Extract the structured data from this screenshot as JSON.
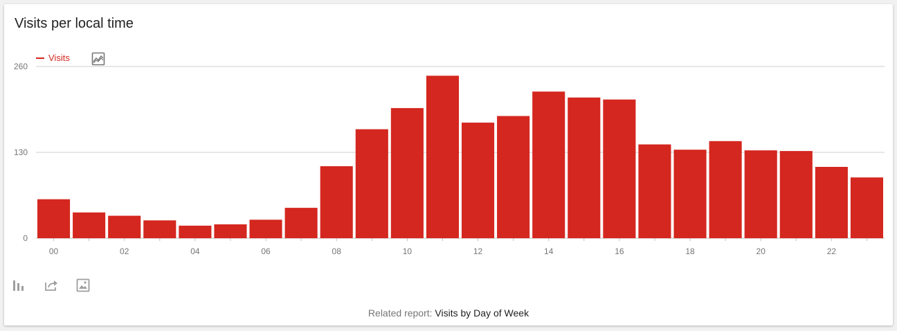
{
  "card": {
    "title": "Visits per local time",
    "related_prefix": "Related report:",
    "related_link": "Visits by Day of Week"
  },
  "icons": {
    "chart_toggle": "line-chart-icon",
    "footer": [
      "bar-chart-icon",
      "share-icon",
      "image-icon"
    ]
  },
  "colors": {
    "bar": "#d4271f",
    "grid": "#cfcfcf",
    "axis_text": "#757575"
  },
  "chart_data": {
    "type": "bar",
    "title": "Visits per local time",
    "xlabel": "",
    "ylabel": "",
    "grid": true,
    "legend": "top-left",
    "ylim": [
      0,
      260
    ],
    "yticks": [
      "0",
      "130",
      "260"
    ],
    "categories": [
      "00",
      "01",
      "02",
      "03",
      "04",
      "05",
      "06",
      "07",
      "08",
      "09",
      "10",
      "11",
      "12",
      "13",
      "14",
      "15",
      "16",
      "17",
      "18",
      "19",
      "20",
      "21",
      "22",
      "23"
    ],
    "xtick_labels": [
      "00",
      "",
      "02",
      "",
      "04",
      "",
      "06",
      "",
      "08",
      "",
      "10",
      "",
      "12",
      "",
      "14",
      "",
      "16",
      "",
      "18",
      "",
      "20",
      "",
      "22",
      ""
    ],
    "series": [
      {
        "name": "Visits",
        "values": [
          59,
          39,
          34,
          27,
          19,
          21,
          28,
          46,
          109,
          165,
          197,
          246,
          175,
          185,
          222,
          213,
          210,
          142,
          134,
          147,
          133,
          132,
          108,
          92
        ]
      }
    ]
  }
}
